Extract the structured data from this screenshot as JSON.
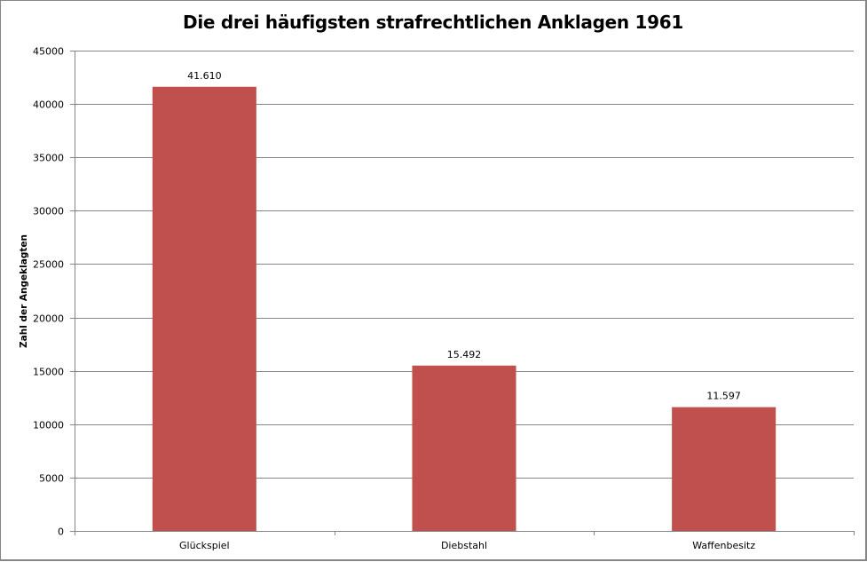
{
  "chart_data": {
    "type": "bar",
    "title": "Die drei häufigsten strafrechtlichen Anklagen 1961",
    "xlabel": "",
    "ylabel": "Zahl der Angeklagten",
    "categories": [
      "Glückspiel",
      "Diebstahl",
      "Waffenbesitz"
    ],
    "values": [
      41610,
      15492,
      11597
    ],
    "data_labels": [
      "41.610",
      "15.492",
      "11.597"
    ],
    "ylim": [
      0,
      45000
    ],
    "yticks": [
      0,
      5000,
      10000,
      15000,
      20000,
      25000,
      30000,
      35000,
      40000,
      45000
    ],
    "grid": true,
    "legend": "none",
    "bar_color": "#C0504D"
  }
}
